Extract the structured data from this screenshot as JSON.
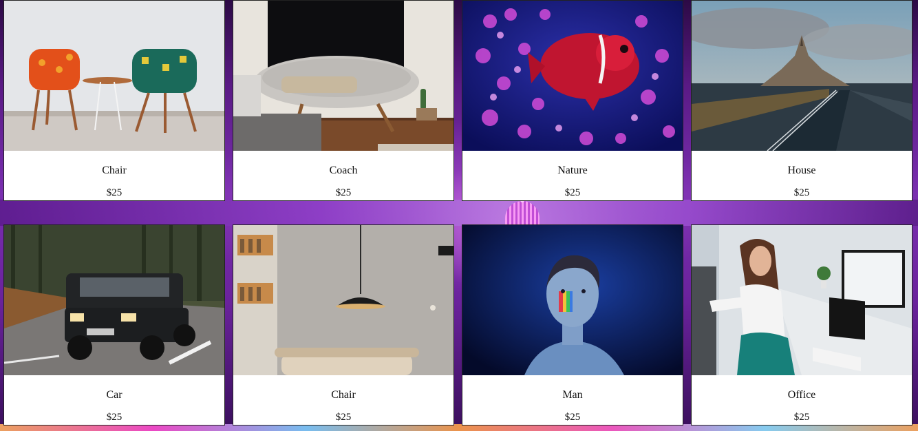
{
  "products": [
    {
      "name": "Chair",
      "price": "$25",
      "image_icon": "chairs-photo"
    },
    {
      "name": "Coach",
      "price": "$25",
      "image_icon": "sofa-photo"
    },
    {
      "name": "Nature",
      "price": "$25",
      "image_icon": "clownfish-photo"
    },
    {
      "name": "House",
      "price": "$25",
      "image_icon": "castle-island-photo"
    },
    {
      "name": "Car",
      "price": "$25",
      "image_icon": "suv-photo"
    },
    {
      "name": "Chair",
      "price": "$25",
      "image_icon": "lamp-room-photo"
    },
    {
      "name": "Man",
      "price": "$25",
      "image_icon": "portrait-photo"
    },
    {
      "name": "Office",
      "price": "$25",
      "image_icon": "office-woman-photo"
    }
  ],
  "colors": {
    "background_purple": "#6a229c",
    "card_background": "#ffffff",
    "text": "#111111"
  }
}
